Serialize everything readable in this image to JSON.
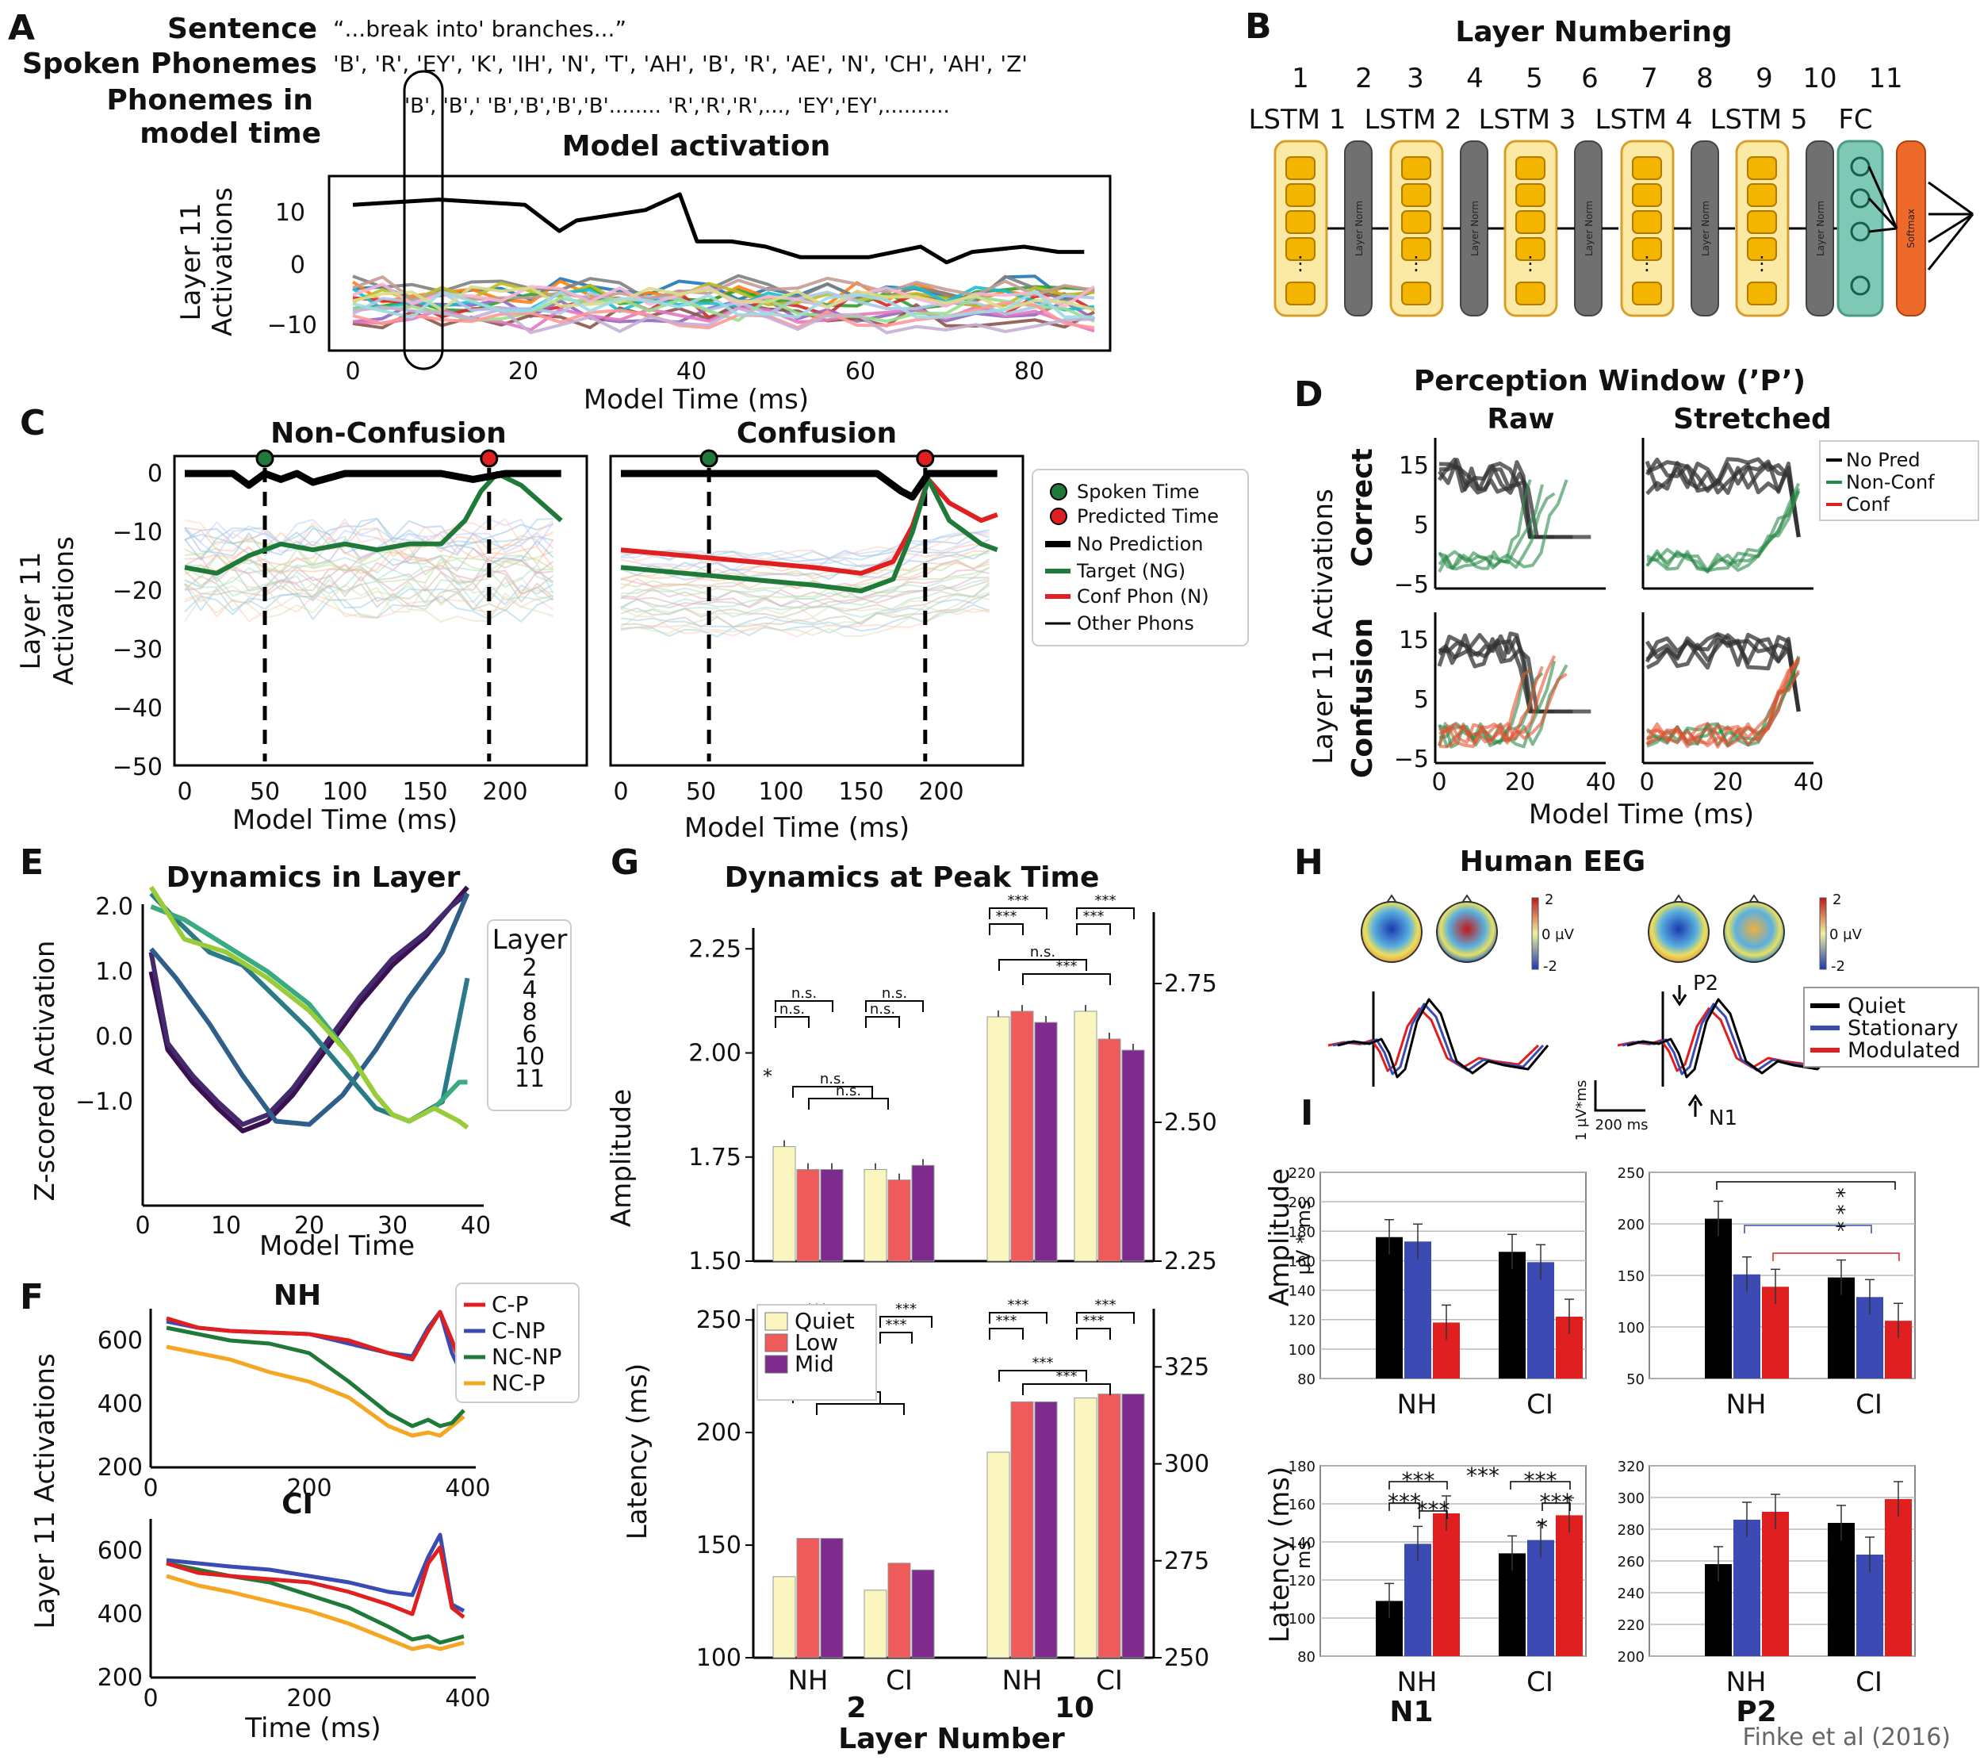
{
  "panel_letters": [
    "A",
    "B",
    "C",
    "D",
    "E",
    "F",
    "G",
    "H",
    "I"
  ],
  "A": {
    "sentence_label": "Sentence",
    "sentence": "“...break into' branches...”",
    "spoken_label": "Spoken Phonemes",
    "spoken": "'B', 'R', 'EY', 'K', 'IH', 'N', 'T', 'AH', 'B', 'R', 'AE', 'N', 'CH', 'AH', 'Z'",
    "model_time_label_1": "Phonemes in",
    "model_time_label_2": "model time",
    "model_time_seq": "'B', 'B',' 'B','B','B','B'........ 'R','R','R',..., 'EY','EY',..........",
    "title": "Model activation",
    "ylabel_1": "Layer 11",
    "ylabel_2": "Activations",
    "xlabel": "Model Time (ms)",
    "xticks": [
      "0",
      "20",
      "40",
      "60",
      "80"
    ],
    "yticks": [
      "10",
      "0",
      "−10"
    ]
  },
  "B": {
    "title": "Layer Numbering",
    "numbers": [
      "1",
      "2",
      "3",
      "4",
      "5",
      "6",
      "7",
      "8",
      "9",
      "10",
      "11"
    ],
    "block_labels": [
      "LSTM 1",
      "LSTM 2",
      "LSTM 3",
      "LSTM 4",
      "LSTM 5",
      "FC"
    ],
    "norm_label": "Layer Norm",
    "softmax_label": "Softmax"
  },
  "C": {
    "title_left": "Non-Confusion",
    "title_right": "Confusion",
    "ylabel_1": "Layer 11",
    "ylabel_2": "Activations",
    "xlabel": "Model Time (ms)",
    "yticks": [
      "0",
      "−10",
      "−20",
      "−30",
      "−40",
      "−50"
    ],
    "xticks": [
      "0",
      "50",
      "100",
      "150",
      "200"
    ],
    "legend": [
      "Spoken Time",
      "Predicted Time",
      "No Prediction",
      "Target (NG)",
      "Conf Phon (N)",
      "Other Phons"
    ]
  },
  "D": {
    "title": "Perception Window (’P’)",
    "col_raw": "Raw",
    "col_stretched": "Stretched",
    "ylabel": "Layer 11 Activations",
    "row_correct": "Correct",
    "row_confusion": "Confusion",
    "xlabel": "Model Time (ms)",
    "yticks": [
      "15",
      "5",
      "−5"
    ],
    "xticks": [
      "0",
      "20",
      "40"
    ],
    "legend": [
      "No Pred",
      "Non-Conf",
      "Conf"
    ]
  },
  "E": {
    "title": "Dynamics in Layer",
    "ylabel": "Z-scored Activation",
    "xlabel": "Model Time",
    "yticks": [
      "2.0",
      "1.0",
      "0.0",
      "−1.0"
    ],
    "xticks": [
      "0",
      "10",
      "20",
      "30",
      "40"
    ],
    "legend_title": "Layer",
    "legend": [
      "2",
      "4",
      "8",
      "6",
      "10",
      "11"
    ]
  },
  "F": {
    "title_nh": "NH",
    "title_ci": "CI",
    "ylabel": "Layer 11 Activations",
    "xlabel": "Time (ms)",
    "yticks": [
      "600",
      "400",
      "200"
    ],
    "xticks": [
      "0",
      "200",
      "400"
    ],
    "legend": [
      "C-P",
      "C-NP",
      "NC-NP",
      "NC-P"
    ]
  },
  "G": {
    "title": "Dynamics at Peak Time",
    "ylabel_top": "Amplitude",
    "ylabel_bottom": "Latency (ms)",
    "yticks_top_left": [
      "2.25",
      "2.00",
      "1.75",
      "1.50"
    ],
    "yticks_top_right": [
      "2.75",
      "2.50",
      "2.25"
    ],
    "yticks_bottom_left": [
      "250",
      "200",
      "150",
      "100"
    ],
    "yticks_bottom_right": [
      "325",
      "300",
      "275",
      "250"
    ],
    "groups": [
      "NH",
      "CI",
      "NH",
      "CI"
    ],
    "layer_numbers": [
      "2",
      "10"
    ],
    "xlabel": "Layer Number",
    "legend": [
      "Quiet",
      "Low",
      "Mid"
    ],
    "ns": "n.s.",
    "star1": "*",
    "star3": "***"
  },
  "H": {
    "title": "Human EEG",
    "cbar_top": "2",
    "cbar_mid": "0 µV",
    "cbar_bot": "-2",
    "p2": "P2",
    "n1": "N1",
    "scale_y": "1 µV*ms",
    "scale_x": "200 ms",
    "legend": [
      "Quiet",
      "Stationary",
      "Modulated"
    ]
  },
  "I": {
    "ylabel_amp_1": "Amplitude",
    "ylabel_amp_2": "µV * ms",
    "ylabel_lat_1": "Latency (ms)",
    "ylabel_lat_2": "ms",
    "yticks_tl": [
      "220",
      "200",
      "180",
      "160",
      "140",
      "120",
      "100",
      "80"
    ],
    "yticks_tr": [
      "250",
      "200",
      "150",
      "100",
      "50"
    ],
    "yticks_bl": [
      "180",
      "160",
      "140",
      "120",
      "100",
      "80"
    ],
    "yticks_br": [
      "320",
      "300",
      "280",
      "260",
      "240",
      "220",
      "200"
    ],
    "groups": [
      "NH",
      "CI"
    ],
    "n1": "N1",
    "p2": "P2",
    "cite": "Finke et al (2016)",
    "star1": "*",
    "star3": "***",
    "star_vert": "* * *"
  },
  "chart_data": [
    {
      "panel": "G-top",
      "type": "bar",
      "ylabel": "Amplitude",
      "categories": [
        "Layer 2 NH",
        "Layer 2 CI",
        "Layer 10 NH",
        "Layer 10 CI"
      ],
      "series": [
        {
          "name": "Quiet",
          "values": [
            1.775,
            1.72,
            2.69,
            2.7
          ]
        },
        {
          "name": "Low",
          "values": [
            1.72,
            1.695,
            2.7,
            2.65
          ]
        },
        {
          "name": "Mid",
          "values": [
            1.72,
            1.73,
            2.68,
            2.63
          ]
        }
      ],
      "ylim_left": [
        1.5,
        2.3
      ],
      "ylim_right": [
        2.25,
        2.85
      ]
    },
    {
      "panel": "G-bottom",
      "type": "bar",
      "ylabel": "Latency (ms)",
      "categories": [
        "Layer 2 NH",
        "Layer 2 CI",
        "Layer 10 NH",
        "Layer 10 CI"
      ],
      "series": [
        {
          "name": "Quiet",
          "values": [
            136,
            130,
            303,
            317
          ]
        },
        {
          "name": "Low",
          "values": [
            153,
            142,
            316,
            318
          ]
        },
        {
          "name": "Mid",
          "values": [
            153,
            139,
            316,
            318
          ]
        }
      ],
      "ylim_left": [
        100,
        255
      ],
      "ylim_right": [
        250,
        340
      ]
    },
    {
      "panel": "I-N1-amplitude",
      "type": "bar",
      "categories": [
        "NH",
        "CI"
      ],
      "series": [
        {
          "name": "Quiet",
          "values": [
            176,
            166
          ]
        },
        {
          "name": "Stationary",
          "values": [
            173,
            159
          ]
        },
        {
          "name": "Modulated",
          "values": [
            118,
            122
          ]
        }
      ],
      "ylim": [
        80,
        220
      ]
    },
    {
      "panel": "I-P2-amplitude",
      "type": "bar",
      "categories": [
        "NH",
        "CI"
      ],
      "series": [
        {
          "name": "Quiet",
          "values": [
            205,
            148
          ]
        },
        {
          "name": "Stationary",
          "values": [
            151,
            129
          ]
        },
        {
          "name": "Modulated",
          "values": [
            139,
            106
          ]
        }
      ],
      "ylim": [
        50,
        250
      ]
    },
    {
      "panel": "I-N1-latency",
      "type": "bar",
      "categories": [
        "NH",
        "CI"
      ],
      "series": [
        {
          "name": "Quiet",
          "values": [
            109,
            134
          ]
        },
        {
          "name": "Stationary",
          "values": [
            139,
            141
          ]
        },
        {
          "name": "Modulated",
          "values": [
            155,
            154
          ]
        }
      ],
      "ylim": [
        80,
        180
      ]
    },
    {
      "panel": "I-P2-latency",
      "type": "bar",
      "categories": [
        "NH",
        "CI"
      ],
      "series": [
        {
          "name": "Quiet",
          "values": [
            258,
            284
          ]
        },
        {
          "name": "Stationary",
          "values": [
            286,
            264
          ]
        },
        {
          "name": "Modulated",
          "values": [
            291,
            299
          ]
        }
      ],
      "ylim": [
        200,
        320
      ]
    },
    {
      "panel": "E",
      "type": "line",
      "xlabel": "Model Time",
      "ylabel": "Z-scored Activation",
      "xlim": [
        0,
        40
      ],
      "ylim": [
        -1.5,
        2.3
      ],
      "series": [
        {
          "name": "2",
          "x": [
            1,
            3,
            6,
            9,
            12,
            15,
            18,
            22,
            26,
            30,
            34,
            37,
            39
          ],
          "y": [
            1.0,
            -0.2,
            -0.7,
            -1.1,
            -1.45,
            -1.3,
            -0.9,
            -0.2,
            0.5,
            1.1,
            1.55,
            2.0,
            2.3
          ]
        },
        {
          "name": "4",
          "x": [
            1,
            3,
            6,
            9,
            12,
            15,
            18,
            22,
            26,
            30,
            34,
            37,
            39
          ],
          "y": [
            1.3,
            -0.1,
            -0.6,
            -1.0,
            -1.35,
            -1.2,
            -0.8,
            -0.1,
            0.6,
            1.2,
            1.6,
            2.0,
            2.2
          ]
        },
        {
          "name": "8",
          "x": [
            1,
            4,
            8,
            12,
            16,
            20,
            24,
            28,
            32,
            36,
            39
          ],
          "y": [
            1.35,
            0.9,
            0.2,
            -0.6,
            -1.3,
            -1.35,
            -0.9,
            -0.2,
            0.6,
            1.3,
            2.2
          ]
        },
        {
          "name": "6",
          "x": [
            1,
            4,
            8,
            12,
            16,
            20,
            24,
            28,
            32,
            36,
            39
          ],
          "y": [
            2.2,
            1.8,
            1.3,
            1.1,
            0.6,
            0.1,
            -0.5,
            -1.1,
            -1.3,
            -1.0,
            0.9
          ]
        },
        {
          "name": "10",
          "x": [
            1,
            5,
            10,
            15,
            20,
            25,
            28,
            30,
            32,
            35,
            38,
            39
          ],
          "y": [
            2.0,
            1.8,
            1.4,
            1.0,
            0.5,
            -0.3,
            -0.9,
            -1.2,
            -1.3,
            -1.1,
            -0.7,
            -0.7
          ]
        },
        {
          "name": "11",
          "x": [
            1,
            5,
            10,
            15,
            20,
            25,
            28,
            30,
            32,
            35,
            38,
            39
          ],
          "y": [
            2.3,
            1.5,
            1.3,
            0.9,
            0.4,
            -0.3,
            -0.9,
            -1.2,
            -1.3,
            -1.1,
            -1.3,
            -1.4
          ]
        }
      ]
    },
    {
      "panel": "F-NH",
      "type": "line",
      "xlabel": "Time (ms)",
      "ylabel": "Layer 11 Activations",
      "xlim": [
        0,
        400
      ],
      "ylim": [
        200,
        700
      ],
      "series": [
        {
          "name": "C-P",
          "x": [
            20,
            60,
            100,
            150,
            200,
            250,
            300,
            330,
            350,
            365,
            380,
            395
          ],
          "y": [
            670,
            640,
            630,
            625,
            620,
            600,
            560,
            540,
            630,
            690,
            600,
            500
          ]
        },
        {
          "name": "C-NP",
          "x": [
            20,
            60,
            100,
            150,
            200,
            250,
            300,
            330,
            350,
            365,
            380,
            395
          ],
          "y": [
            660,
            640,
            630,
            625,
            620,
            590,
            560,
            550,
            640,
            690,
            560,
            480
          ]
        },
        {
          "name": "NC-NP",
          "x": [
            20,
            60,
            100,
            150,
            200,
            250,
            300,
            330,
            350,
            365,
            380,
            395
          ],
          "y": [
            640,
            620,
            600,
            590,
            560,
            470,
            370,
            330,
            350,
            330,
            340,
            380
          ]
        },
        {
          "name": "NC-P",
          "x": [
            20,
            60,
            100,
            150,
            200,
            250,
            300,
            330,
            350,
            365,
            380,
            395
          ],
          "y": [
            580,
            560,
            540,
            500,
            470,
            420,
            330,
            300,
            310,
            300,
            330,
            360
          ]
        }
      ]
    },
    {
      "panel": "F-CI",
      "type": "line",
      "xlabel": "Time (ms)",
      "ylabel": "Layer 11 Activations",
      "xlim": [
        0,
        400
      ],
      "ylim": [
        200,
        700
      ],
      "series": [
        {
          "name": "C-P",
          "x": [
            20,
            60,
            100,
            150,
            200,
            250,
            300,
            330,
            350,
            365,
            380,
            395
          ],
          "y": [
            560,
            530,
            520,
            510,
            500,
            470,
            430,
            400,
            560,
            610,
            420,
            390
          ]
        },
        {
          "name": "C-NP",
          "x": [
            20,
            60,
            100,
            150,
            200,
            250,
            300,
            330,
            350,
            365,
            380,
            395
          ],
          "y": [
            570,
            560,
            550,
            540,
            520,
            500,
            470,
            460,
            580,
            650,
            430,
            410
          ]
        },
        {
          "name": "NC-NP",
          "x": [
            20,
            60,
            100,
            150,
            200,
            250,
            300,
            330,
            350,
            365,
            380,
            395
          ],
          "y": [
            560,
            540,
            520,
            500,
            460,
            420,
            360,
            320,
            330,
            310,
            320,
            330
          ]
        },
        {
          "name": "NC-P",
          "x": [
            20,
            60,
            100,
            150,
            200,
            250,
            300,
            330,
            350,
            365,
            380,
            395
          ],
          "y": [
            520,
            490,
            470,
            440,
            410,
            370,
            320,
            290,
            300,
            290,
            300,
            310
          ]
        }
      ]
    }
  ],
  "colors": {
    "quiet_bar": "#fbf6c0",
    "low_bar": "#ef5a5a",
    "mid_bar": "#7d2c8e",
    "eeg_quiet": "#000000",
    "eeg_stationary": "#3b4bb3",
    "eeg_modulated": "#e02020",
    "target": "#1f7a3a",
    "conf": "#e02020",
    "nopred": "#000000",
    "lstm_fill": "#fbe9a6",
    "lstm_stroke": "#d8a02a",
    "norm_fill": "#707070",
    "fc_fill": "#7ec9b5",
    "softmax_fill": "#ee6a2a"
  }
}
